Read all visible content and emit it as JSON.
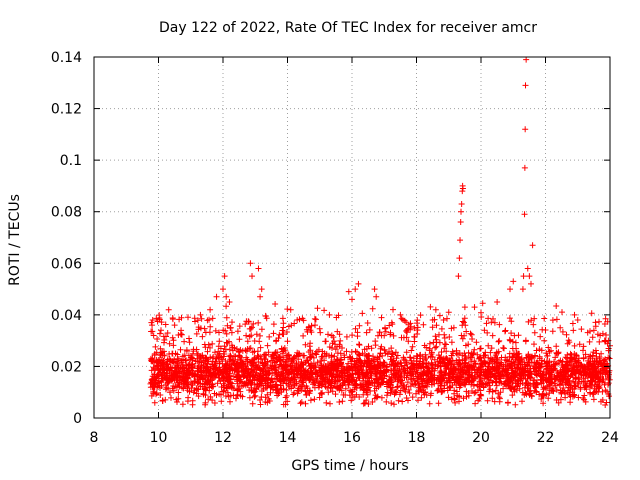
{
  "chart_data": {
    "type": "scatter",
    "title": "Day 122 of 2022, Rate Of TEC Index for receiver amcr",
    "xlabel": "GPS time / hours",
    "ylabel": "ROTI / TECUs",
    "xlim": [
      8,
      24
    ],
    "ylim": [
      0,
      0.14
    ],
    "grid": true,
    "marker": "+",
    "xticks": [
      8,
      10,
      12,
      14,
      16,
      18,
      20,
      22,
      24
    ],
    "xtick_labels": [
      "8",
      "10",
      "12",
      "14",
      "16",
      "18",
      "20",
      "22",
      "24"
    ],
    "yticks": [
      0,
      0.02,
      0.04,
      0.06,
      0.08,
      0.1,
      0.12,
      0.14
    ],
    "ytick_labels": [
      "0",
      "0.02",
      "0.04",
      "0.06",
      "0.08",
      "0.1",
      "0.12",
      "0.14"
    ],
    "series": [
      {
        "name": "ROTI",
        "color": "#ff0000",
        "density": {
          "x_range": [
            9.75,
            24
          ],
          "typical_band": [
            0.005,
            0.03
          ],
          "upper_spread_max": 0.045
        },
        "points": [
          [
            9.78,
            0.037
          ],
          [
            9.8,
            0.036
          ],
          [
            9.82,
            0.038
          ],
          [
            9.85,
            0.032
          ],
          [
            10.5,
            0.036
          ],
          [
            10.7,
            0.034
          ],
          [
            11.3,
            0.04
          ],
          [
            11.6,
            0.042
          ],
          [
            11.8,
            0.047
          ],
          [
            12.0,
            0.05
          ],
          [
            12.05,
            0.055
          ],
          [
            12.1,
            0.047
          ],
          [
            12.2,
            0.045
          ],
          [
            12.85,
            0.06
          ],
          [
            12.9,
            0.055
          ],
          [
            13.1,
            0.058
          ],
          [
            13.2,
            0.05
          ],
          [
            13.15,
            0.047
          ],
          [
            14.1,
            0.042
          ],
          [
            14.3,
            0.038
          ],
          [
            15.3,
            0.04
          ],
          [
            15.9,
            0.049
          ],
          [
            16.0,
            0.046
          ],
          [
            16.1,
            0.05
          ],
          [
            16.2,
            0.052
          ],
          [
            16.7,
            0.05
          ],
          [
            16.75,
            0.047
          ],
          [
            17.5,
            0.04
          ],
          [
            18.6,
            0.042
          ],
          [
            19.0,
            0.041
          ],
          [
            19.3,
            0.055
          ],
          [
            19.33,
            0.062
          ],
          [
            19.35,
            0.069
          ],
          [
            19.37,
            0.076
          ],
          [
            19.38,
            0.08
          ],
          [
            19.4,
            0.083
          ],
          [
            19.42,
            0.088
          ],
          [
            19.43,
            0.09
          ],
          [
            19.44,
            0.089
          ],
          [
            19.5,
            0.043
          ],
          [
            19.8,
            0.043
          ],
          [
            20.5,
            0.045
          ],
          [
            20.9,
            0.05
          ],
          [
            21.0,
            0.053
          ],
          [
            21.3,
            0.05
          ],
          [
            21.32,
            0.055
          ],
          [
            21.35,
            0.079
          ],
          [
            21.36,
            0.097
          ],
          [
            21.37,
            0.112
          ],
          [
            21.38,
            0.129
          ],
          [
            21.4,
            0.139
          ],
          [
            21.45,
            0.058
          ],
          [
            21.5,
            0.055
          ],
          [
            21.6,
            0.067
          ],
          [
            21.55,
            0.052
          ],
          [
            22.9,
            0.04
          ],
          [
            23.0,
            0.038
          ],
          [
            23.5,
            0.034
          ],
          [
            23.95,
            0.03
          ],
          [
            24.0,
            0.028
          ]
        ]
      }
    ]
  }
}
